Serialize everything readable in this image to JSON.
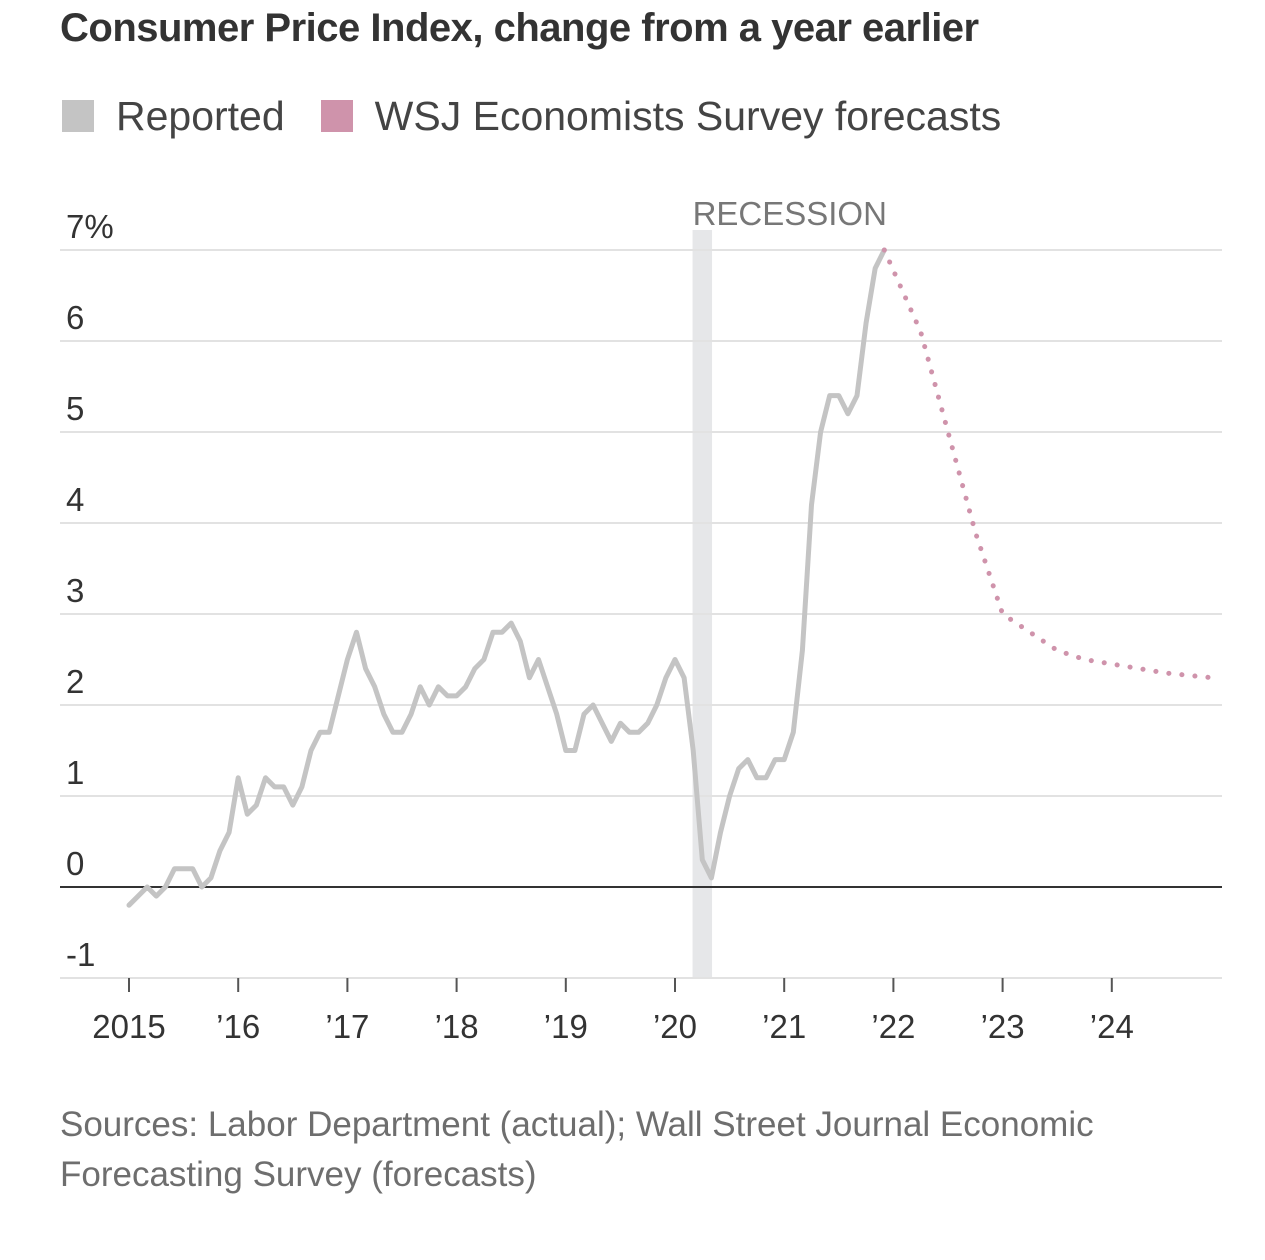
{
  "colors": {
    "reported": "#c4c4c4",
    "forecast": "#cf93ab",
    "recession_band": "#e6e7e9",
    "grid": "#e2e2e2",
    "zero_line": "#333333",
    "text": "#333333"
  },
  "chart_data": {
    "type": "line",
    "title": "Consumer Price Index, change from a year earlier",
    "ylim": [
      -1,
      7
    ],
    "yticks": [
      -1,
      0,
      1,
      2,
      3,
      4,
      5,
      6,
      7
    ],
    "ytick_labels": [
      "-1",
      "0",
      "1",
      "2",
      "3",
      "4",
      "5",
      "6",
      "7%"
    ],
    "xlim": [
      2015,
      2025
    ],
    "xticks": [
      2015,
      2016,
      2017,
      2018,
      2019,
      2020,
      2021,
      2022,
      2023,
      2024
    ],
    "xtick_labels": [
      "2015",
      "’16",
      "’17",
      "’18",
      "’19",
      "’20",
      "’21",
      "’22",
      "’23",
      "’24"
    ],
    "grid": true,
    "legend": {
      "placement": "top-left",
      "entries": [
        "Reported",
        "WSJ Economists Survey forecasts"
      ]
    },
    "annotations": [
      {
        "text": "RECESSION",
        "x_range": [
          2020.17,
          2020.33
        ]
      }
    ],
    "series": [
      {
        "name": "Reported",
        "style": "solid",
        "x": [
          2015.0,
          2015.083,
          2015.167,
          2015.25,
          2015.333,
          2015.417,
          2015.5,
          2015.583,
          2015.667,
          2015.75,
          2015.833,
          2015.917,
          2016.0,
          2016.083,
          2016.167,
          2016.25,
          2016.333,
          2016.417,
          2016.5,
          2016.583,
          2016.667,
          2016.75,
          2016.833,
          2016.917,
          2017.0,
          2017.083,
          2017.167,
          2017.25,
          2017.333,
          2017.417,
          2017.5,
          2017.583,
          2017.667,
          2017.75,
          2017.833,
          2017.917,
          2018.0,
          2018.083,
          2018.167,
          2018.25,
          2018.333,
          2018.417,
          2018.5,
          2018.583,
          2018.667,
          2018.75,
          2018.833,
          2018.917,
          2019.0,
          2019.083,
          2019.167,
          2019.25,
          2019.333,
          2019.417,
          2019.5,
          2019.583,
          2019.667,
          2019.75,
          2019.833,
          2019.917,
          2020.0,
          2020.083,
          2020.167,
          2020.25,
          2020.333,
          2020.417,
          2020.5,
          2020.583,
          2020.667,
          2020.75,
          2020.833,
          2020.917,
          2021.0,
          2021.083,
          2021.167,
          2021.25,
          2021.333,
          2021.417,
          2021.5,
          2021.583,
          2021.667,
          2021.75,
          2021.833,
          2021.917
        ],
        "y": [
          -0.2,
          -0.1,
          0.0,
          -0.1,
          0.0,
          0.2,
          0.2,
          0.2,
          0.0,
          0.1,
          0.4,
          0.6,
          1.2,
          0.8,
          0.9,
          1.2,
          1.1,
          1.1,
          0.9,
          1.1,
          1.5,
          1.7,
          1.7,
          2.1,
          2.5,
          2.8,
          2.4,
          2.2,
          1.9,
          1.7,
          1.7,
          1.9,
          2.2,
          2.0,
          2.2,
          2.1,
          2.1,
          2.2,
          2.4,
          2.5,
          2.8,
          2.8,
          2.9,
          2.7,
          2.3,
          2.5,
          2.2,
          1.9,
          1.5,
          1.5,
          1.9,
          2.0,
          1.8,
          1.6,
          1.8,
          1.7,
          1.7,
          1.8,
          2.0,
          2.3,
          2.5,
          2.3,
          1.5,
          0.3,
          0.1,
          0.6,
          1.0,
          1.3,
          1.4,
          1.2,
          1.2,
          1.4,
          1.4,
          1.7,
          2.6,
          4.2,
          5.0,
          5.4,
          5.4,
          5.2,
          5.4,
          6.2,
          6.8,
          7.0
        ]
      },
      {
        "name": "WSJ Economists Survey forecasts",
        "style": "dotted",
        "x": [
          2021.917,
          2022.25,
          2022.5,
          2022.75,
          2023.0,
          2023.25,
          2023.5,
          2023.75,
          2024.0,
          2024.25,
          2024.5,
          2024.75,
          2024.917
        ],
        "y": [
          7.0,
          6.1,
          5.0,
          3.9,
          3.0,
          2.8,
          2.6,
          2.5,
          2.45,
          2.4,
          2.35,
          2.32,
          2.3
        ]
      }
    ]
  },
  "legend": {
    "reported_label": "Reported",
    "forecast_label": "WSJ Economists Survey forecasts"
  },
  "source_note": "Sources: Labor Department (actual); Wall Street Journal Economic Forecasting Survey (forecasts)"
}
